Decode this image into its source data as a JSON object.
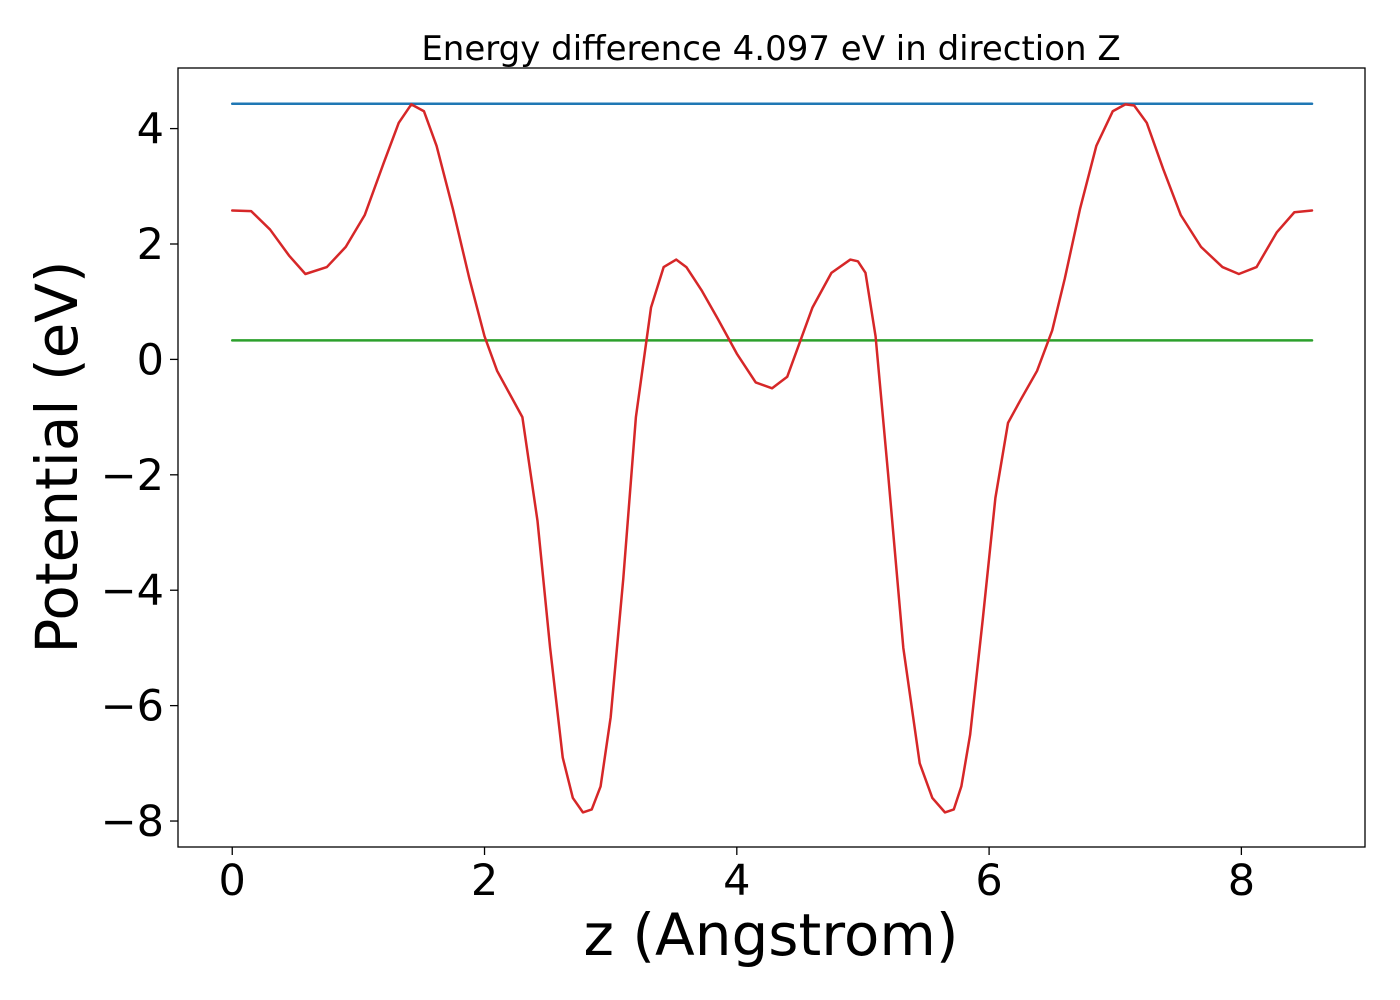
{
  "chart_data": {
    "type": "line",
    "title": "Energy difference 4.097 eV in direction Z",
    "xlabel": "z (Angstrom)",
    "ylabel": "Potential (eV)",
    "xlim": [
      -0.43,
      8.98
    ],
    "ylim": [
      -8.45,
      5.05
    ],
    "xticks": [
      0,
      2,
      4,
      6,
      8
    ],
    "xtick_labels": [
      "0",
      "2",
      "4",
      "6",
      "8"
    ],
    "yticks": [
      -8,
      -6,
      -4,
      -2,
      0,
      2,
      4
    ],
    "ytick_labels": [
      "−8",
      "−6",
      "−4",
      "−2",
      "0",
      "2",
      "4"
    ],
    "grid": false,
    "legend": "none",
    "series": [
      {
        "color": "#1f77b4",
        "x": [
          0,
          8.56
        ],
        "y": [
          4.43,
          4.43
        ]
      },
      {
        "color": "#2ca02c",
        "x": [
          0,
          8.56
        ],
        "y": [
          0.33,
          0.33
        ]
      },
      {
        "color": "#d62728",
        "x": [
          0.0,
          0.15,
          0.3,
          0.45,
          0.58,
          0.75,
          0.9,
          1.05,
          1.2,
          1.32,
          1.42,
          1.52,
          1.62,
          1.75,
          1.88,
          2.0,
          2.1,
          2.2,
          2.3,
          2.42,
          2.52,
          2.62,
          2.7,
          2.78,
          2.85,
          2.92,
          3.0,
          3.1,
          3.2,
          3.32,
          3.42,
          3.52,
          3.6,
          3.66,
          3.72,
          3.85,
          4.0,
          4.15,
          4.28,
          4.4,
          4.5,
          4.6,
          4.75,
          4.9,
          4.96,
          5.02,
          5.1,
          5.2,
          5.32,
          5.45,
          5.55,
          5.65,
          5.72,
          5.78,
          5.85,
          5.95,
          6.05,
          6.15,
          6.25,
          6.38,
          6.5,
          6.6,
          6.72,
          6.85,
          6.98,
          7.08,
          7.15,
          7.25,
          7.38,
          7.52,
          7.68,
          7.85,
          7.98,
          8.12,
          8.28,
          8.42,
          8.56
        ],
        "y": [
          2.58,
          2.57,
          2.25,
          1.8,
          1.48,
          1.6,
          1.95,
          2.5,
          3.4,
          4.1,
          4.42,
          4.3,
          3.7,
          2.6,
          1.4,
          0.4,
          -0.2,
          -0.6,
          -1.0,
          -2.8,
          -5.0,
          -6.9,
          -7.6,
          -7.85,
          -7.8,
          -7.4,
          -6.2,
          -3.8,
          -1.0,
          0.9,
          1.6,
          1.73,
          1.6,
          1.4,
          1.2,
          0.7,
          0.1,
          -0.4,
          -0.5,
          -0.3,
          0.3,
          0.9,
          1.5,
          1.73,
          1.7,
          1.5,
          0.4,
          -2.0,
          -5.0,
          -7.0,
          -7.6,
          -7.85,
          -7.8,
          -7.4,
          -6.5,
          -4.5,
          -2.4,
          -1.1,
          -0.7,
          -0.2,
          0.5,
          1.4,
          2.6,
          3.7,
          4.3,
          4.42,
          4.4,
          4.1,
          3.3,
          2.5,
          1.95,
          1.6,
          1.48,
          1.6,
          2.2,
          2.55,
          2.58
        ]
      }
    ]
  }
}
